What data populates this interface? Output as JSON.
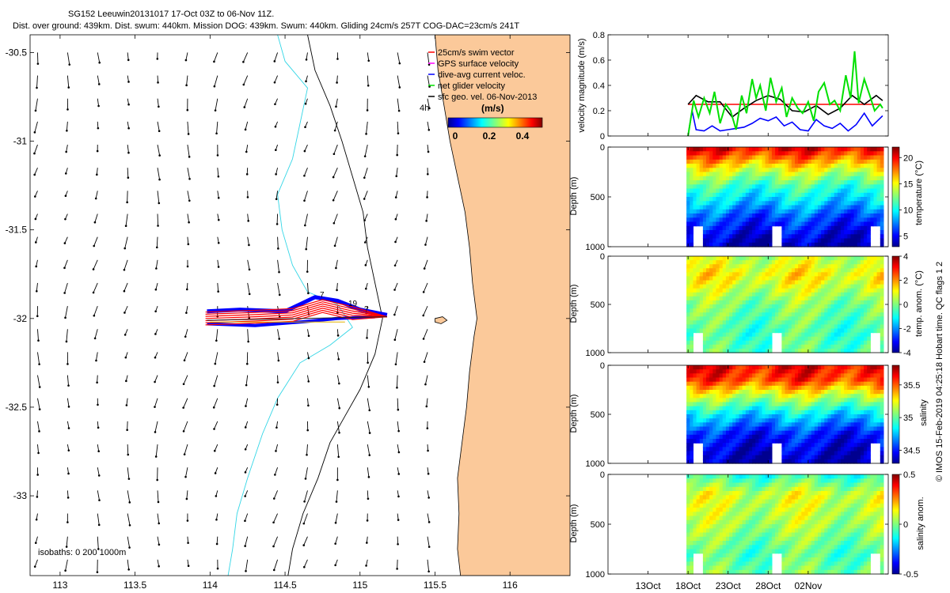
{
  "title": {
    "line1": "SG152 Leeuwin20131017 17-Oct 03Z to 06-Nov 11Z.",
    "line2": "Dist. over ground: 439km. Dist. swum: 440km. Mission DOG: 439km. Swum: 440km. Gliding 24cm/s 257T COG-DAC=23cm/s 241T"
  },
  "credit": "© IMOS 15-Feb-2019 04:25:18 Hobart time. QC flags 1  2",
  "colors": {
    "ocean": "#ffffff",
    "land": "#fbc99a",
    "isobath_200": "#33d6e6",
    "isobath_1000": "#000000",
    "swim": "#ff0000",
    "gps": "#ff00ff",
    "dac": "#0000ff",
    "net": "#00e000",
    "sfc": "#000000"
  },
  "map": {
    "lon_range": [
      112.8,
      116.4
    ],
    "lat_range": [
      -33.45,
      -30.4
    ],
    "xticks": [
      "113",
      "113.5",
      "114",
      "114.5",
      "115",
      "115.5",
      "116"
    ],
    "yticks": [
      "-30.5",
      "-31",
      "-31.5",
      "-32",
      "-32.5",
      "-33"
    ],
    "legend": [
      {
        "label": "25cm/s swim vector",
        "color": "#ff0000"
      },
      {
        "label": "GPS surface velocity",
        "color": "#ff00ff"
      },
      {
        "label": "dive-avg current veloc.",
        "color": "#0000ff"
      },
      {
        "label": "net glider velocity",
        "color": "#00e000"
      },
      {
        "label": "sfc geo. vel. 06-Nov-2013",
        "color": "#000000"
      }
    ],
    "timestep": "4h",
    "colorbar_title": "(m/s)",
    "colorbar_ticks": [
      "0",
      "0.2",
      "0.4"
    ],
    "isobaths_label": "isobaths: 0   200  1000m",
    "track_labels": [
      "7",
      "19",
      "?"
    ]
  },
  "chart_data": [
    {
      "type": "line",
      "ylabel": "velocity magnitude (m/s)",
      "ylim": [
        0,
        0.8
      ],
      "yticks": [
        "0",
        "0.2",
        "0.4",
        "0.6",
        "0.8"
      ],
      "series": [
        {
          "name": "25cm/s swim vector",
          "color": "#ff0000",
          "x": [
            18.0,
            42.0
          ],
          "values": [
            0.25,
            0.25
          ]
        },
        {
          "name": "sfc geo. vel. 06-Nov-2013",
          "color": "#000000",
          "x": [
            18.0,
            19.0,
            20.5,
            22.0,
            23.5,
            25.0,
            26.5,
            28.0,
            29.5,
            31.0,
            32.5,
            34.0,
            35.5,
            37.0,
            38.5,
            40.0,
            41.5,
            42.3
          ],
          "values": [
            0.25,
            0.32,
            0.27,
            0.27,
            0.15,
            0.22,
            0.28,
            0.32,
            0.29,
            0.2,
            0.19,
            0.24,
            0.17,
            0.22,
            0.32,
            0.25,
            0.32,
            0.28
          ]
        },
        {
          "name": "dive-avg current veloc.",
          "color": "#0000ff",
          "x": [
            18.0,
            18.5,
            19.0,
            20.0,
            21.0,
            22.0,
            23.0,
            24.0,
            25.0,
            26.0,
            27.0,
            28.0,
            29.0,
            30.0,
            31.0,
            32.0,
            33.0,
            34.0,
            35.0,
            36.0,
            37.0,
            38.0,
            39.0,
            40.0,
            41.0,
            42.3
          ],
          "values": [
            0.0,
            0.2,
            0.05,
            0.04,
            0.08,
            0.04,
            0.05,
            0.06,
            0.07,
            0.1,
            0.14,
            0.12,
            0.15,
            0.08,
            0.11,
            0.05,
            0.04,
            0.13,
            0.08,
            0.06,
            0.1,
            0.04,
            0.09,
            0.18,
            0.08,
            0.16
          ]
        },
        {
          "name": "net glider velocity",
          "color": "#00e000",
          "x": [
            18.0,
            18.7,
            19.3,
            20.0,
            20.7,
            21.3,
            22.0,
            22.7,
            23.3,
            24.0,
            24.7,
            25.3,
            26.0,
            26.5,
            27.0,
            27.7,
            28.3,
            29.0,
            29.7,
            30.3,
            31.0,
            31.7,
            32.3,
            33.0,
            33.7,
            34.3,
            35.0,
            35.7,
            36.3,
            37.0,
            37.7,
            38.3,
            38.8,
            39.3,
            40.0,
            40.7,
            41.3,
            42.0,
            42.3
          ],
          "values": [
            0.0,
            0.28,
            0.15,
            0.3,
            0.18,
            0.35,
            0.1,
            0.25,
            0.2,
            0.05,
            0.32,
            0.18,
            0.45,
            0.3,
            0.4,
            0.2,
            0.46,
            0.27,
            0.38,
            0.15,
            0.3,
            0.22,
            0.18,
            0.27,
            0.12,
            0.35,
            0.42,
            0.25,
            0.28,
            0.2,
            0.48,
            0.3,
            0.67,
            0.26,
            0.45,
            0.32,
            0.2,
            0.25,
            0.22
          ]
        }
      ]
    },
    {
      "type": "heatmap",
      "ylabel": "Depth (m)",
      "ylim": [
        1000,
        0
      ],
      "yticks": [
        "0",
        "500",
        "1000"
      ],
      "colorbar_label": "temperature (°C)",
      "clim": [
        3,
        22
      ],
      "colorbar_ticks": [
        "5",
        "10",
        "15",
        "20"
      ],
      "profile": {
        "depth": [
          0,
          100,
          250,
          400,
          550,
          700,
          850,
          1000
        ],
        "values": [
          20.5,
          18,
          14,
          11,
          9,
          6.5,
          5,
          3.5
        ]
      }
    },
    {
      "type": "heatmap",
      "ylabel": "Depth (m)",
      "ylim": [
        1000,
        0
      ],
      "yticks": [
        "0",
        "500",
        "1000"
      ],
      "colorbar_label": "temp. anom. (°C)",
      "clim": [
        -4,
        4
      ],
      "colorbar_ticks": [
        "-4",
        "-2",
        "0",
        "2",
        "4"
      ],
      "profile": {
        "depth": [
          0,
          200,
          500,
          800,
          1000
        ],
        "values": [
          0.5,
          1.2,
          0,
          -0.5,
          -0.3
        ]
      }
    },
    {
      "type": "heatmap",
      "ylabel": "Depth (m)",
      "ylim": [
        1000,
        0
      ],
      "yticks": [
        "0",
        "500",
        "1000"
      ],
      "colorbar_label": "salinity",
      "clim": [
        34.3,
        35.8
      ],
      "colorbar_ticks": [
        "34.5",
        "35",
        "35.5"
      ],
      "profile": {
        "depth": [
          0,
          150,
          300,
          500,
          700,
          1000
        ],
        "values": [
          35.65,
          35.55,
          35.2,
          34.8,
          34.5,
          34.35
        ]
      }
    },
    {
      "type": "heatmap",
      "ylabel": "Depth (m)",
      "ylim": [
        1000,
        0
      ],
      "yticks": [
        "0",
        "500",
        "1000"
      ],
      "colorbar_label": "salinity anom.",
      "clim": [
        -0.5,
        0.5
      ],
      "colorbar_ticks": [
        "-0.5",
        "0",
        "0.5"
      ],
      "profile": {
        "depth": [
          0,
          200,
          500,
          800,
          1000
        ],
        "values": [
          -0.1,
          0.1,
          0.05,
          -0.05,
          0
        ]
      }
    }
  ],
  "time_axis": {
    "range": [
      8,
      43
    ],
    "data_start": 17.8,
    "data_end": 42.4,
    "ticks": [
      {
        "day": 13,
        "label": "13Oct"
      },
      {
        "day": 18,
        "label": "18Oct"
      },
      {
        "day": 23,
        "label": "23Oct"
      },
      {
        "day": 28,
        "label": "28Oct"
      },
      {
        "day": 33,
        "label": "02Nov"
      }
    ]
  }
}
